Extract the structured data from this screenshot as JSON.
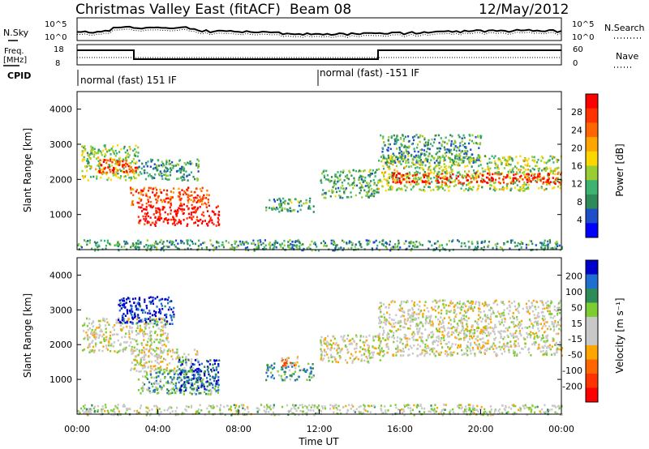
{
  "header": {
    "station": "Christmas Valley East (fitACF)",
    "beam": "Beam 08",
    "date": "12/May/2012"
  },
  "nsky_panel": {
    "left_label": "N.Sky",
    "right_label": "N.Search",
    "left_ticks": [
      "10^5",
      "10^0"
    ],
    "right_ticks": [
      "10^5",
      "10^0"
    ]
  },
  "freq_panel": {
    "left_label_line1": "Freq.",
    "left_label_line2": "[MHz]",
    "right_label": "Nave",
    "left_ticks": [
      "18",
      "8"
    ],
    "right_ticks": [
      "60",
      "0"
    ]
  },
  "cpid": {
    "label": "CPID",
    "segments": [
      {
        "text": "normal (fast) 151 IF",
        "start_hour": 0
      },
      {
        "text": "normal (fast) -151 IF",
        "start_hour": 12
      }
    ]
  },
  "colors": {
    "power_scale": [
      "#0000ff",
      "#1f4fc8",
      "#2e8b57",
      "#3cb371",
      "#9acd32",
      "#ffd700",
      "#ffa500",
      "#ff6600",
      "#ff3300",
      "#ff0000"
    ],
    "velocity_scale": [
      "#0000cd",
      "#1e6fd0",
      "#2e8b57",
      "#7ccd32",
      "#c8c8c8",
      "#c8c8c8",
      "#ffa500",
      "#ff6600",
      "#ff3300",
      "#ff0000"
    ]
  },
  "chart_data": [
    {
      "type": "heatmap",
      "name": "power",
      "ylabel": "Slant Range [km]",
      "yticks": [
        1000,
        2000,
        3000,
        4000
      ],
      "ylim": [
        0,
        4500
      ],
      "xlim_hours": [
        0,
        24
      ],
      "colorbar": {
        "label": "Power [dB]",
        "ticks": [
          "4",
          "8",
          "12",
          "16",
          "20",
          "24",
          "28"
        ]
      },
      "features": [
        {
          "x": [
            0.2,
            3.0
          ],
          "y": [
            2000,
            3000
          ],
          "level": 0.45
        },
        {
          "x": [
            1.0,
            3.0
          ],
          "y": [
            2200,
            2600
          ],
          "level": 0.85
        },
        {
          "x": [
            3.0,
            6.0
          ],
          "y": [
            2000,
            2600
          ],
          "level": 0.3
        },
        {
          "x": [
            2.6,
            6.5
          ],
          "y": [
            1300,
            1800
          ],
          "level": 0.8
        },
        {
          "x": [
            3.0,
            7.0
          ],
          "y": [
            700,
            1300
          ],
          "level": 0.95
        },
        {
          "x": [
            9.3,
            11.7
          ],
          "y": [
            1100,
            1500
          ],
          "level": 0.35
        },
        {
          "x": [
            12.0,
            14.9
          ],
          "y": [
            1500,
            2300
          ],
          "level": 0.35
        },
        {
          "x": [
            14.9,
            24.0
          ],
          "y": [
            1700,
            2700
          ],
          "level": 0.45
        },
        {
          "x": [
            15.5,
            24.0
          ],
          "y": [
            1900,
            2200
          ],
          "level": 0.9
        },
        {
          "x": [
            15.0,
            20.0
          ],
          "y": [
            2500,
            3300
          ],
          "level": 0.3
        },
        {
          "x": [
            0.0,
            24.0
          ],
          "y": [
            0,
            300
          ],
          "level": 0.3
        }
      ]
    },
    {
      "type": "heatmap",
      "name": "velocity",
      "ylabel": "Slant Range [km]",
      "xlabel": "Time UT",
      "yticks": [
        1000,
        2000,
        3000,
        4000
      ],
      "ylim": [
        0,
        4500
      ],
      "xlim_hours": [
        0,
        24
      ],
      "xticks": [
        "00:00",
        "04:00",
        "08:00",
        "12:00",
        "16:00",
        "20:00",
        "00:00"
      ],
      "colorbar": {
        "label": "Velocity [m s⁻¹]",
        "ticks": [
          "200",
          "100",
          "50",
          "15",
          "-15",
          "-50",
          "-100",
          "-200"
        ]
      },
      "features": [
        {
          "x": [
            0.2,
            4.5
          ],
          "y": [
            1800,
            2800
          ],
          "level": 0.5
        },
        {
          "x": [
            2.0,
            4.8
          ],
          "y": [
            2600,
            3400
          ],
          "level": 0.05
        },
        {
          "x": [
            2.6,
            6.0
          ],
          "y": [
            1200,
            1900
          ],
          "level": 0.5
        },
        {
          "x": [
            3.0,
            7.0
          ],
          "y": [
            600,
            1300
          ],
          "level": 0.3
        },
        {
          "x": [
            5.0,
            7.0
          ],
          "y": [
            700,
            1600
          ],
          "level": 0.12
        },
        {
          "x": [
            9.3,
            11.7
          ],
          "y": [
            1000,
            1500
          ],
          "level": 0.3
        },
        {
          "x": [
            10.0,
            11.0
          ],
          "y": [
            1400,
            1700
          ],
          "level": 0.7
        },
        {
          "x": [
            12.0,
            15.0
          ],
          "y": [
            1500,
            2300
          ],
          "level": 0.5
        },
        {
          "x": [
            14.9,
            24.0
          ],
          "y": [
            1700,
            3300
          ],
          "level": 0.5
        },
        {
          "x": [
            0.0,
            24.0
          ],
          "y": [
            0,
            300
          ],
          "level": 0.45
        }
      ]
    }
  ]
}
